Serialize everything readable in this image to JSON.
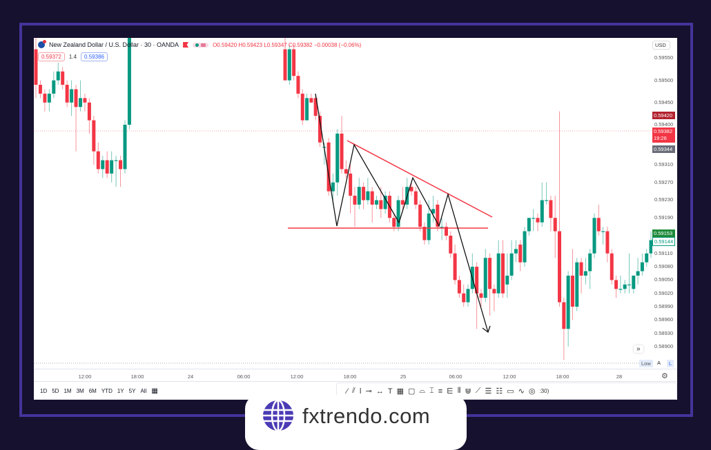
{
  "header": {
    "symbol_title": "New Zealand Dollar / U.S. Dollar · 30 · OANDA",
    "ohlc": "O0.59420 H0.59423 L0.59347 C0.59382 −0.00038 (−0.06%)",
    "bid": "0.59372",
    "spread": "1.4",
    "ask": "0.59386"
  },
  "price_axis": {
    "currency": "USD",
    "labels": [
      "0.59550",
      "0.59500",
      "0.59450",
      "0.59400",
      "0.59310",
      "0.59270",
      "0.59230",
      "0.59190",
      "0.59110",
      "0.59080",
      "0.59050",
      "0.59020",
      "0.58990",
      "0.58960",
      "0.58930",
      "0.58900"
    ],
    "tags": {
      "high": "0.59420",
      "last": "0.59382",
      "countdown": "19:26",
      "low_mark": "0.59344",
      "green": "0.59153",
      "green_outline": "0.59144"
    },
    "low_label": "Low",
    "auto_label": "A",
    "log_label": "L"
  },
  "time_axis": {
    "labels": [
      "12:00",
      "18:00",
      "24",
      "06:00",
      "12:00",
      "18:00",
      "25",
      "06:00",
      "12:00",
      "18:00",
      "28"
    ]
  },
  "range_buttons": [
    "1D",
    "5D",
    "1M",
    "3M",
    "6M",
    "YTD",
    "1Y",
    "5Y",
    "All"
  ],
  "drawing_tools": [
    "trend-line",
    "pitchfork",
    "vertical-line",
    "horizontal-ray",
    "cross-line",
    "text",
    "grid",
    "rectangle",
    "path",
    "long-position",
    "parallel-channel",
    "fib-fan",
    "gann-box",
    "fork",
    "brush",
    "fib-channel",
    "date-price-range",
    "callout",
    "zigzag",
    "circle"
  ],
  "timezone_partial": ":30)",
  "colors": {
    "up": "#089981",
    "down": "#f23645",
    "pattern_line": "#f23645",
    "zigzag": "#111111",
    "frame": "#44349a",
    "background": "#16112e",
    "logo": "#4a3bb5"
  },
  "watermark_logo": "fxtrendo.com",
  "chart": {
    "type": "candlestick",
    "interval": "30",
    "candles_left": [
      [
        0.5957,
        0.5962,
        0.5946,
        0.5949
      ],
      [
        0.5949,
        0.595,
        0.5946,
        0.5947
      ],
      [
        0.5947,
        0.5948,
        0.5943,
        0.5945
      ],
      [
        0.5945,
        0.5948,
        0.5943,
        0.5947
      ],
      [
        0.5947,
        0.5952,
        0.5946,
        0.595
      ],
      [
        0.595,
        0.5954,
        0.5949,
        0.5952
      ],
      [
        0.5952,
        0.5953,
        0.5948,
        0.5949
      ],
      [
        0.5949,
        0.595,
        0.5944,
        0.5945
      ],
      [
        0.5945,
        0.595,
        0.5942,
        0.5948
      ],
      [
        0.5948,
        0.5949,
        0.5934,
        0.5944
      ],
      [
        0.5944,
        0.595,
        0.5943,
        0.5946
      ],
      [
        0.5946,
        0.5947,
        0.5943,
        0.5945
      ],
      [
        0.5945,
        0.5946,
        0.5938,
        0.5941
      ],
      [
        0.5941,
        0.5942,
        0.5931,
        0.5934
      ],
      [
        0.5934,
        0.5936,
        0.5929,
        0.593
      ],
      [
        0.593,
        0.5933,
        0.5928,
        0.5932
      ],
      [
        0.5932,
        0.5934,
        0.5928,
        0.5929
      ],
      [
        0.5929,
        0.5934,
        0.5927,
        0.5932
      ],
      [
        0.5932,
        0.5933,
        0.5926,
        0.5932
      ],
      [
        0.5932,
        0.5933,
        0.5926,
        0.593
      ],
      [
        0.593,
        0.5941,
        0.5929,
        0.594
      ],
      [
        0.594,
        0.5962,
        0.5939,
        0.596
      ]
    ],
    "candles_right": [
      [
        0.5957,
        0.5962,
        0.595,
        0.595
      ],
      [
        0.595,
        0.5958,
        0.5949,
        0.5957
      ],
      [
        0.5957,
        0.5958,
        0.595,
        0.5951
      ],
      [
        0.5951,
        0.5952,
        0.5946,
        0.5947
      ],
      [
        0.5947,
        0.5948,
        0.594,
        0.5941
      ],
      [
        0.5941,
        0.5947,
        0.5941,
        0.5946
      ],
      [
        0.5946,
        0.5947,
        0.5945,
        0.5945
      ],
      [
        0.5946,
        0.5947,
        0.5941,
        0.5942
      ],
      [
        0.5942,
        0.5943,
        0.5935,
        0.5936
      ],
      [
        0.5935,
        0.5936,
        0.5931,
        0.5935
      ],
      [
        0.5936,
        0.5937,
        0.5924,
        0.5925
      ],
      [
        0.5925,
        0.5929,
        0.5922,
        0.5927
      ],
      [
        0.5927,
        0.5939,
        0.5924,
        0.5938
      ],
      [
        0.5938,
        0.5942,
        0.5929,
        0.593
      ],
      [
        0.593,
        0.5932,
        0.5928,
        0.5929
      ],
      [
        0.5929,
        0.5931,
        0.592,
        0.5924
      ],
      [
        0.5924,
        0.5926,
        0.5917,
        0.5922
      ],
      [
        0.5922,
        0.5928,
        0.5921,
        0.5926
      ],
      [
        0.5926,
        0.5927,
        0.5921,
        0.5923
      ],
      [
        0.5923,
        0.5928,
        0.5922,
        0.5925
      ],
      [
        0.5925,
        0.5926,
        0.5918,
        0.5922
      ],
      [
        0.5922,
        0.5924,
        0.5921,
        0.5923
      ],
      [
        0.5923,
        0.5926,
        0.5919,
        0.5921
      ],
      [
        0.5921,
        0.5925,
        0.592,
        0.5924
      ],
      [
        0.5924,
        0.5925,
        0.5918,
        0.5919
      ],
      [
        0.5919,
        0.592,
        0.5916,
        0.5917
      ],
      [
        0.5917,
        0.5924,
        0.5916,
        0.5923
      ],
      [
        0.5923,
        0.5926,
        0.5921,
        0.5922
      ],
      [
        0.5922,
        0.5928,
        0.5921,
        0.5926
      ],
      [
        0.5926,
        0.5927,
        0.5924,
        0.5925
      ],
      [
        0.5925,
        0.5926,
        0.5921,
        0.5922
      ],
      [
        0.5922,
        0.5923,
        0.5916,
        0.5917
      ],
      [
        0.5917,
        0.5918,
        0.5913,
        0.5914
      ],
      [
        0.5914,
        0.5923,
        0.5913,
        0.592
      ],
      [
        0.592,
        0.5924,
        0.5918,
        0.5921
      ],
      [
        0.5922,
        0.5923,
        0.5916,
        0.5917
      ],
      [
        0.5917,
        0.5919,
        0.5914,
        0.5917
      ],
      [
        0.5917,
        0.5918,
        0.5914,
        0.5915
      ],
      [
        0.5915,
        0.5916,
        0.591,
        0.5911
      ],
      [
        0.5911,
        0.5913,
        0.5904,
        0.5905
      ],
      [
        0.5905,
        0.5906,
        0.5901,
        0.5902
      ],
      [
        0.5902,
        0.5904,
        0.5899,
        0.59
      ],
      [
        0.59,
        0.5904,
        0.5899,
        0.5903
      ],
      [
        0.5903,
        0.5911,
        0.5902,
        0.5908
      ],
      [
        0.5908,
        0.5909,
        0.5894,
        0.5902
      ],
      [
        0.5902,
        0.5903,
        0.5899,
        0.5901
      ],
      [
        0.5901,
        0.5912,
        0.59,
        0.591
      ],
      [
        0.591,
        0.5911,
        0.5897,
        0.5903
      ],
      [
        0.5903,
        0.5904,
        0.5898,
        0.5902
      ],
      [
        0.5902,
        0.5914,
        0.5901,
        0.5911
      ],
      [
        0.5911,
        0.5914,
        0.5901,
        0.5902
      ],
      [
        0.5904,
        0.5911,
        0.5901,
        0.5906
      ],
      [
        0.5906,
        0.5914,
        0.5905,
        0.5911
      ],
      [
        0.5911,
        0.5914,
        0.5909,
        0.5912
      ],
      [
        0.5913,
        0.5914,
        0.5907,
        0.5909
      ],
      [
        0.5909,
        0.5917,
        0.5908,
        0.5916
      ],
      [
        0.5916,
        0.5919,
        0.5915,
        0.5919
      ],
      [
        0.5919,
        0.5921,
        0.5916,
        0.5919
      ],
      [
        0.5919,
        0.592,
        0.5916,
        0.5918
      ],
      [
        0.5918,
        0.5927,
        0.5917,
        0.5923
      ],
      [
        0.5923,
        0.5927,
        0.5922,
        0.5923
      ],
      [
        0.5923,
        0.5924,
        0.5916,
        0.5919
      ],
      [
        0.5919,
        0.5924,
        0.591,
        0.5916
      ],
      [
        0.5916,
        0.5943,
        0.5899,
        0.59
      ],
      [
        0.59,
        0.5901,
        0.5887,
        0.5894
      ],
      [
        0.5894,
        0.5907,
        0.589,
        0.5906
      ],
      [
        0.5906,
        0.5912,
        0.5896,
        0.5899
      ],
      [
        0.5899,
        0.591,
        0.5898,
        0.5909
      ],
      [
        0.5909,
        0.591,
        0.5902,
        0.5906
      ],
      [
        0.5906,
        0.591,
        0.5904,
        0.5907
      ],
      [
        0.5907,
        0.5912,
        0.5903,
        0.5911
      ],
      [
        0.5911,
        0.592,
        0.591,
        0.5919
      ],
      [
        0.5919,
        0.5922,
        0.5915,
        0.5916
      ],
      [
        0.5916,
        0.5917,
        0.5913,
        0.5916
      ],
      [
        0.5916,
        0.5917,
        0.5909,
        0.5911
      ],
      [
        0.5911,
        0.5912,
        0.5904,
        0.5905
      ],
      [
        0.5905,
        0.5906,
        0.5901,
        0.5903
      ],
      [
        0.5903,
        0.5906,
        0.5902,
        0.5903
      ],
      [
        0.5903,
        0.5905,
        0.5902,
        0.5904
      ],
      [
        0.5904,
        0.5911,
        0.5902,
        0.5904
      ],
      [
        0.5903,
        0.5906,
        0.5902,
        0.5906
      ],
      [
        0.5906,
        0.591,
        0.5904,
        0.5907
      ],
      [
        0.5907,
        0.5911,
        0.5906,
        0.5909
      ],
      [
        0.5909,
        0.5912,
        0.5908,
        0.5911
      ],
      [
        0.5911,
        0.5916,
        0.591,
        0.5914
      ]
    ]
  }
}
